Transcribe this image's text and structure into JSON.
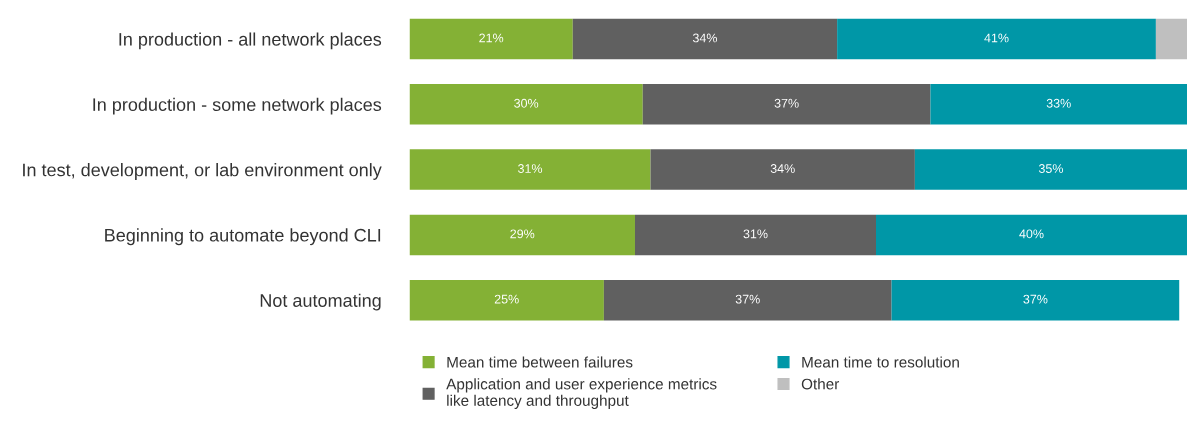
{
  "chart_data": {
    "type": "bar",
    "orientation": "horizontal",
    "stacked": true,
    "categories": [
      "In production - all network places",
      "In production - some network places",
      "In test, development, or lab environment only",
      "Beginning to automate beyond CLI",
      "Not automating"
    ],
    "series": [
      {
        "name": "Mean time between failures",
        "color": "#84b135",
        "values": [
          21,
          30,
          31,
          29,
          25
        ],
        "value_labels": [
          "21%",
          "30%",
          "31%",
          "29%",
          "25%"
        ]
      },
      {
        "name": "Application and user experience metrics\nlike latency and throughput",
        "color": "#606060",
        "values": [
          34,
          37,
          34,
          31,
          37
        ],
        "value_labels": [
          "34%",
          "37%",
          "34%",
          "31%",
          "37%"
        ]
      },
      {
        "name": "Mean time to resolution",
        "color": "#0097a7",
        "values": [
          41,
          33,
          35,
          40,
          37
        ],
        "value_labels": [
          "41%",
          "33%",
          "35%",
          "40%",
          "37%"
        ]
      },
      {
        "name": "Other",
        "color": "#bfbfbf",
        "values": [
          4,
          null,
          null,
          null,
          null
        ],
        "value_labels": [
          null,
          null,
          null,
          null,
          null
        ]
      }
    ],
    "xlim": [
      0,
      100
    ],
    "tick_labels": "y",
    "grid": false,
    "legend": "bottom"
  }
}
